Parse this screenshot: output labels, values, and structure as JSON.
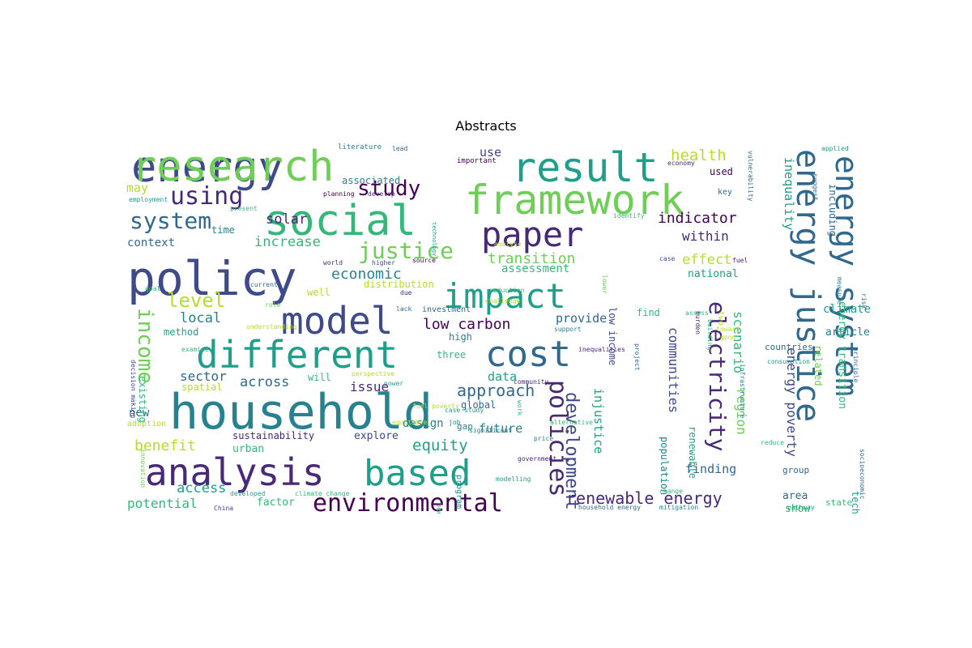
{
  "title": "Abstracts",
  "palette": [
    "#440154",
    "#482878",
    "#3e4a89",
    "#31688e",
    "#26828e",
    "#1f9e89",
    "#35b779",
    "#6ece58",
    "#b5de2b",
    "#d8e219"
  ],
  "words": [
    {
      "text": "energy",
      "ci": 2
    },
    {
      "text": "household",
      "ci": 4
    },
    {
      "text": "research",
      "ci": 7
    },
    {
      "text": "social",
      "ci": 6
    },
    {
      "text": "framework",
      "ci": 7
    },
    {
      "text": "result",
      "ci": 5
    },
    {
      "text": "policy",
      "ci": 2
    },
    {
      "text": "different",
      "ci": 5
    },
    {
      "text": "analysis",
      "ci": 1
    },
    {
      "text": "based",
      "ci": 5
    },
    {
      "text": "model",
      "ci": 2
    },
    {
      "text": "impact",
      "ci": 5
    },
    {
      "text": "cost",
      "ci": 3
    },
    {
      "text": "paper",
      "ci": 1
    },
    {
      "text": "energy justice",
      "ci": 3
    },
    {
      "text": "energy system",
      "ci": 3
    },
    {
      "text": "environmental",
      "ci": 0
    },
    {
      "text": "policies",
      "ci": 1
    },
    {
      "text": "electricity",
      "ci": 1
    },
    {
      "text": "justice",
      "ci": 7
    },
    {
      "text": "using",
      "ci": 1
    },
    {
      "text": "study",
      "ci": 0
    },
    {
      "text": "system",
      "ci": 3
    },
    {
      "text": "income",
      "ci": 7
    },
    {
      "text": "level",
      "ci": 8
    },
    {
      "text": "development",
      "ci": 2
    },
    {
      "text": "renewable energy",
      "ci": 1
    },
    {
      "text": "approach",
      "ci": 3
    },
    {
      "text": "equity",
      "ci": 5
    },
    {
      "text": "health",
      "ci": 8
    },
    {
      "text": "indicator",
      "ci": 0
    },
    {
      "text": "transition",
      "ci": 7
    },
    {
      "text": "economic",
      "ci": 4
    },
    {
      "text": "low carbon",
      "ci": 0
    },
    {
      "text": "benefit",
      "ci": 8
    },
    {
      "text": "access",
      "ci": 5
    },
    {
      "text": "potential",
      "ci": 6
    },
    {
      "text": "across",
      "ci": 3
    },
    {
      "text": "solar",
      "ci": 1
    },
    {
      "text": "increase",
      "ci": 6
    },
    {
      "text": "local",
      "ci": 4
    },
    {
      "text": "sector",
      "ci": 3
    },
    {
      "text": "effect",
      "ci": 8
    },
    {
      "text": "within",
      "ci": 1
    },
    {
      "text": "communities",
      "ci": 2
    },
    {
      "text": "energy poverty",
      "ci": 2
    },
    {
      "text": "scenario",
      "ci": 6
    },
    {
      "text": "inequality",
      "ci": 5
    },
    {
      "text": "region",
      "ci": 7
    },
    {
      "text": "injustice",
      "ci": 5
    },
    {
      "text": "finding",
      "ci": 3
    },
    {
      "text": "provide",
      "ci": 3
    },
    {
      "text": "issue",
      "ci": 1
    },
    {
      "text": "data",
      "ci": 5
    },
    {
      "text": "future",
      "ci": 4
    },
    {
      "text": "context",
      "ci": 3
    },
    {
      "text": "may",
      "ci": 8
    },
    {
      "text": "use",
      "ci": 2
    },
    {
      "text": "new",
      "ci": 3
    },
    {
      "text": "design",
      "ci": 4
    },
    {
      "text": "assessment",
      "ci": 6
    },
    {
      "text": "national",
      "ci": 5
    },
    {
      "text": "climate",
      "ci": 5
    },
    {
      "text": "article",
      "ci": 4
    },
    {
      "text": "area",
      "ci": 3
    },
    {
      "text": "show",
      "ci": 6
    },
    {
      "text": "factor",
      "ci": 6
    },
    {
      "text": "urban",
      "ci": 6
    },
    {
      "text": "explore",
      "ci": 2
    },
    {
      "text": "sustainability",
      "ci": 1
    },
    {
      "text": "global",
      "ci": 3
    },
    {
      "text": "distribution",
      "ci": 8
    },
    {
      "text": "associated",
      "ci": 4
    },
    {
      "text": "three",
      "ci": 6
    },
    {
      "text": "high",
      "ci": 4
    },
    {
      "text": "will",
      "ci": 6
    },
    {
      "text": "time",
      "ci": 4
    },
    {
      "text": "well",
      "ci": 8
    },
    {
      "text": "method",
      "ci": 5
    },
    {
      "text": "existing",
      "ci": 6
    },
    {
      "text": "spatial",
      "ci": 8
    },
    {
      "text": "countries",
      "ci": 3
    },
    {
      "text": "find",
      "ci": 6
    },
    {
      "text": "population",
      "ci": 4
    },
    {
      "text": "renewable",
      "ci": 5
    },
    {
      "text": "related",
      "ci": 7
    },
    {
      "text": "including",
      "ci": 3
    },
    {
      "text": "energy transition",
      "ci": 6
    },
    {
      "text": "technologies",
      "ci": 5
    },
    {
      "text": "state",
      "ci": 6
    },
    {
      "text": "group",
      "ci": 3
    },
    {
      "text": "used",
      "ci": 0
    },
    {
      "text": "key",
      "ci": 3
    },
    {
      "text": "low income",
      "ci": 2
    },
    {
      "text": "gap",
      "ci": 4
    },
    {
      "text": "program",
      "ci": 4
    },
    {
      "text": "need",
      "ci": 6
    },
    {
      "text": "two",
      "ci": 8
    },
    {
      "text": "adoption",
      "ci": 8
    },
    {
      "text": "investment",
      "ci": 3
    },
    {
      "text": "important",
      "ci": 0
    },
    {
      "text": "literature",
      "ci": 4
    },
    {
      "text": "lead",
      "ci": 3
    },
    {
      "text": "economy",
      "ci": 1
    },
    {
      "text": "applied",
      "ci": 5
    },
    {
      "text": "vulnerability",
      "ci": 3
    },
    {
      "text": "employment",
      "ci": 5
    },
    {
      "text": "planning",
      "ci": 0
    },
    {
      "text": "develop",
      "ci": 1
    },
    {
      "text": "technology",
      "ci": 5
    },
    {
      "text": "identify",
      "ci": 6
    },
    {
      "text": "suggest",
      "ci": 3
    },
    {
      "text": "present",
      "ci": 6
    },
    {
      "text": "world",
      "ci": 1
    },
    {
      "text": "higher",
      "ci": 2
    },
    {
      "text": "source",
      "ci": 0
    },
    {
      "text": "analyse",
      "ci": 8
    },
    {
      "text": "reduction",
      "ci": 6
    },
    {
      "text": "case",
      "ci": 2
    },
    {
      "text": "measure",
      "ci": 4
    },
    {
      "text": "risk",
      "ci": 3
    },
    {
      "text": "goal",
      "ci": 6
    },
    {
      "text": "current",
      "ci": 3
    },
    {
      "text": "role",
      "ci": 7
    },
    {
      "text": "challenge",
      "ci": 8
    },
    {
      "text": "support",
      "ci": 4
    },
    {
      "text": "toward",
      "ci": 8
    },
    {
      "text": "fuel",
      "ci": 1
    },
    {
      "text": "assess",
      "ci": 6
    },
    {
      "text": "understanding",
      "ci": 8
    },
    {
      "text": "examine",
      "ci": 6
    },
    {
      "text": "inequalities",
      "ci": 1
    },
    {
      "text": "project",
      "ci": 3
    },
    {
      "text": "infrastructure",
      "ci": 4
    },
    {
      "text": "consumption",
      "ci": 5
    },
    {
      "text": "principle",
      "ci": 3
    },
    {
      "text": "decision making",
      "ci": 2
    },
    {
      "text": "perspective",
      "ci": 8
    },
    {
      "text": "power",
      "ci": 5
    },
    {
      "text": "community",
      "ci": 1
    },
    {
      "text": "work",
      "ci": 6
    },
    {
      "text": "fuel poverty",
      "ci": 8
    },
    {
      "text": "case study",
      "ci": 5
    },
    {
      "text": "alternative",
      "ci": 6
    },
    {
      "text": "equitable",
      "ci": 8
    },
    {
      "text": "significant",
      "ci": 4
    },
    {
      "text": "price",
      "ci": 4
    },
    {
      "text": "government",
      "ci": 1
    },
    {
      "text": "reduce",
      "ci": 6
    },
    {
      "text": "socioeconomic",
      "ci": 3
    },
    {
      "text": "innovation",
      "ci": 7
    },
    {
      "text": "China",
      "ci": 2
    },
    {
      "text": "developed",
      "ci": 5
    },
    {
      "text": "climate change",
      "ci": 6
    },
    {
      "text": "modelling",
      "ci": 5
    },
    {
      "text": "household energy",
      "ci": 3
    },
    {
      "text": "change",
      "ci": 6
    },
    {
      "text": "mitigation",
      "ci": 4
    },
    {
      "text": "pathway",
      "ci": 5
    },
    {
      "text": "lower",
      "ci": 7
    },
    {
      "text": "due",
      "ci": 1
    },
    {
      "text": "lack",
      "ci": 3
    },
    {
      "text": "job",
      "ci": 4
    },
    {
      "text": "burden",
      "ci": 1
    },
    {
      "text": "building",
      "ci": 6
    },
    {
      "text": "good",
      "ci": 8
    }
  ]
}
